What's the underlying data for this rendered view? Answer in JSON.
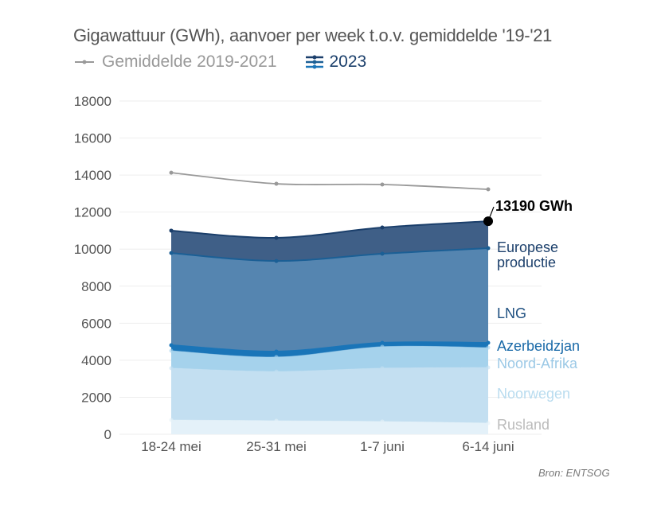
{
  "title": "Gigawattuur (GWh), aanvoer per week t.o.v. gemiddelde '19-'21",
  "legend": {
    "avg": "Gemiddelde 2019-2021",
    "current": "2023"
  },
  "source": "Bron: ENTSOG",
  "annotation": "13190 GWh",
  "colors": {
    "avg": "#999999",
    "europese": "#3f5f87",
    "lng": "#5585b0",
    "azer": "#1a75b8",
    "noordafrika": "#a5d2ec",
    "noorwegen": "#c3dff1",
    "rusland": "#e4f1f9"
  },
  "chart_data": {
    "type": "area",
    "stacked": true,
    "title": "Gigawattuur (GWh), aanvoer per week t.o.v. gemiddelde '19-'21",
    "categories": [
      "18-24 mei",
      "25-31 mei",
      "1-7 juni",
      "6-14 juni"
    ],
    "ylim": [
      0,
      18000
    ],
    "yticks": [
      "0",
      "2000",
      "4000",
      "6000",
      "8000",
      "10000",
      "12000",
      "14000",
      "16000",
      "18000"
    ],
    "grid": true,
    "series": [
      {
        "name": "Rusland",
        "values": [
          770,
          730,
          690,
          600
        ],
        "color": "#e4f1f9",
        "label_color": "#bbbbbb"
      },
      {
        "name": "Noorwegen",
        "values": [
          2800,
          2660,
          2880,
          3010
        ],
        "color": "#c3dff1",
        "label_color": "#b9dcef"
      },
      {
        "name": "Noord-Afrika",
        "values": [
          940,
          780,
          1160,
          1070
        ],
        "color": "#a5d2ec",
        "label_color": "#9cc9e6"
      },
      {
        "name": "Azerbeidzjan",
        "values": [
          300,
          300,
          210,
          260
        ],
        "color": "#1a75b8",
        "label_color": "#1a6aa8"
      },
      {
        "name": "LNG",
        "values": [
          4980,
          4890,
          4810,
          5110
        ],
        "color": "#5585b0",
        "label_color": "#1d4f80"
      },
      {
        "name": "Europese productie",
        "label_lines": [
          "Europese",
          "productie"
        ],
        "values": [
          1210,
          1250,
          1420,
          1460
        ],
        "color": "#3f5f87",
        "label_color": "#1b3f6b"
      }
    ],
    "line": {
      "name": "Gemiddelde 2019-2021",
      "values": [
        14130,
        13530,
        13490,
        13230
      ],
      "color": "#999999"
    }
  }
}
